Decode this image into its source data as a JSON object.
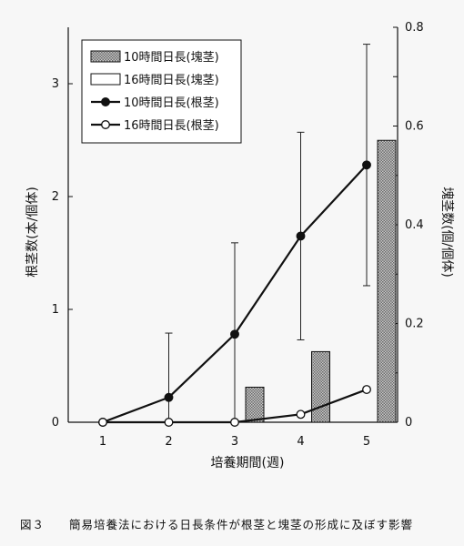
{
  "chart_data": {
    "type": "bar+line",
    "categories": [
      "1",
      "2",
      "3",
      "4",
      "5"
    ],
    "xlabel": "培養期間(週)",
    "ylabel_left": "根茎数(本/個体)",
    "ylabel_right": "塊茎数(個/個体)",
    "left_axis": {
      "min": 0,
      "max": 3.5,
      "ticks": [
        "0",
        "1",
        "2",
        "3"
      ]
    },
    "right_axis": {
      "min": 0,
      "max": 0.8,
      "ticks": [
        "0",
        "0.2",
        "0.4",
        "0.6",
        "0.8"
      ]
    },
    "bar_series": [
      {
        "name": "10時間日長(塊茎)",
        "axis": "right",
        "fill": "#8a8a8a",
        "values": [
          0,
          0,
          0.071,
          0.143,
          0.571
        ]
      },
      {
        "name": "16時間日長(塊茎)",
        "axis": "right",
        "fill": "#ffffff",
        "values": [
          0,
          0,
          0,
          0,
          0
        ]
      }
    ],
    "line_series": [
      {
        "name": "10時間日長(根茎)",
        "axis": "left",
        "marker": "filled",
        "values": [
          0,
          0.22,
          0.78,
          1.65,
          2.28
        ],
        "error": [
          0,
          0.57,
          0.81,
          0.92,
          1.07
        ]
      },
      {
        "name": "16時間日長(根茎)",
        "axis": "left",
        "marker": "open",
        "values": [
          0,
          0,
          0,
          0.07,
          0.29
        ]
      }
    ],
    "legend_position": "top-left"
  },
  "caption": {
    "figure_no": "図３",
    "text": "簡易培養法における日長条件が根茎と塊茎の形成に及ぼす影響"
  }
}
